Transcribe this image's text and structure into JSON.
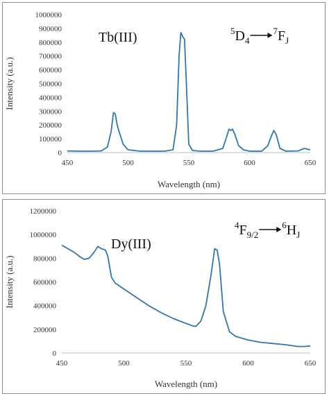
{
  "chart_data": [
    {
      "type": "line",
      "label": "Tb(III)",
      "transition": {
        "upper_sup": "5",
        "upper": "D",
        "upper_sub": "4",
        "lower_sup": "7",
        "lower": "F",
        "lower_sub": "J"
      },
      "xlabel": "Wavelength (nm)",
      "ylabel": "Intensity (a.u.)",
      "xlim": [
        450,
        650
      ],
      "ylim": [
        0,
        1000000
      ],
      "xticks": [
        "450",
        "500",
        "550",
        "600",
        "650"
      ],
      "yticks": [
        "0",
        "100000",
        "200000",
        "300000",
        "400000",
        "500000",
        "600000",
        "700000",
        "800000",
        "900000",
        "1000000"
      ],
      "color": "#2e75b6",
      "x": [
        450,
        460,
        470,
        478,
        483,
        486,
        488,
        489.5,
        491,
        493,
        496,
        500,
        510,
        520,
        530,
        537,
        540,
        542,
        543.5,
        545,
        546.5,
        548,
        550,
        553,
        560,
        570,
        578,
        581,
        583,
        584.5,
        586,
        588,
        591,
        595,
        600,
        610,
        615,
        618,
        620,
        622,
        625,
        630,
        640,
        645,
        650
      ],
      "y": [
        12000,
        10000,
        10000,
        12000,
        40000,
        150000,
        290000,
        280000,
        200000,
        140000,
        60000,
        20000,
        10000,
        10000,
        10000,
        20000,
        200000,
        700000,
        870000,
        840000,
        820000,
        500000,
        60000,
        15000,
        10000,
        10000,
        30000,
        110000,
        170000,
        160000,
        170000,
        130000,
        50000,
        20000,
        10000,
        10000,
        50000,
        120000,
        160000,
        130000,
        30000,
        10000,
        12000,
        30000,
        20000
      ]
    },
    {
      "type": "line",
      "label": "Dy(III)",
      "transition": {
        "upper_sup": "4",
        "upper": "F",
        "upper_sub": "9/2",
        "lower_sup": "6",
        "lower": "H",
        "lower_sub": "J"
      },
      "xlabel": "Wavelength (nm)",
      "ylabel": "Intensity (a.u.)",
      "xlim": [
        450,
        650
      ],
      "ylim": [
        0,
        1200000
      ],
      "xticks": [
        "450",
        "500",
        "550",
        "600",
        "650"
      ],
      "yticks": [
        "0",
        "200000",
        "400000",
        "600000",
        "800000",
        "1000000",
        "1200000"
      ],
      "color": "#2e75b6",
      "x": [
        450,
        455,
        460,
        465,
        468,
        472,
        476,
        479,
        482,
        485,
        487,
        490,
        493,
        500,
        510,
        520,
        530,
        540,
        550,
        555,
        558,
        562,
        566,
        570,
        573,
        575,
        577,
        580,
        585,
        590,
        600,
        610,
        620,
        630,
        640,
        645,
        650
      ],
      "y": [
        910000,
        880000,
        850000,
        810000,
        790000,
        800000,
        850000,
        900000,
        880000,
        870000,
        820000,
        640000,
        590000,
        540000,
        470000,
        400000,
        340000,
        290000,
        250000,
        230000,
        225000,
        270000,
        400000,
        650000,
        880000,
        870000,
        750000,
        350000,
        180000,
        140000,
        110000,
        90000,
        80000,
        70000,
        55000,
        55000,
        60000
      ]
    }
  ]
}
